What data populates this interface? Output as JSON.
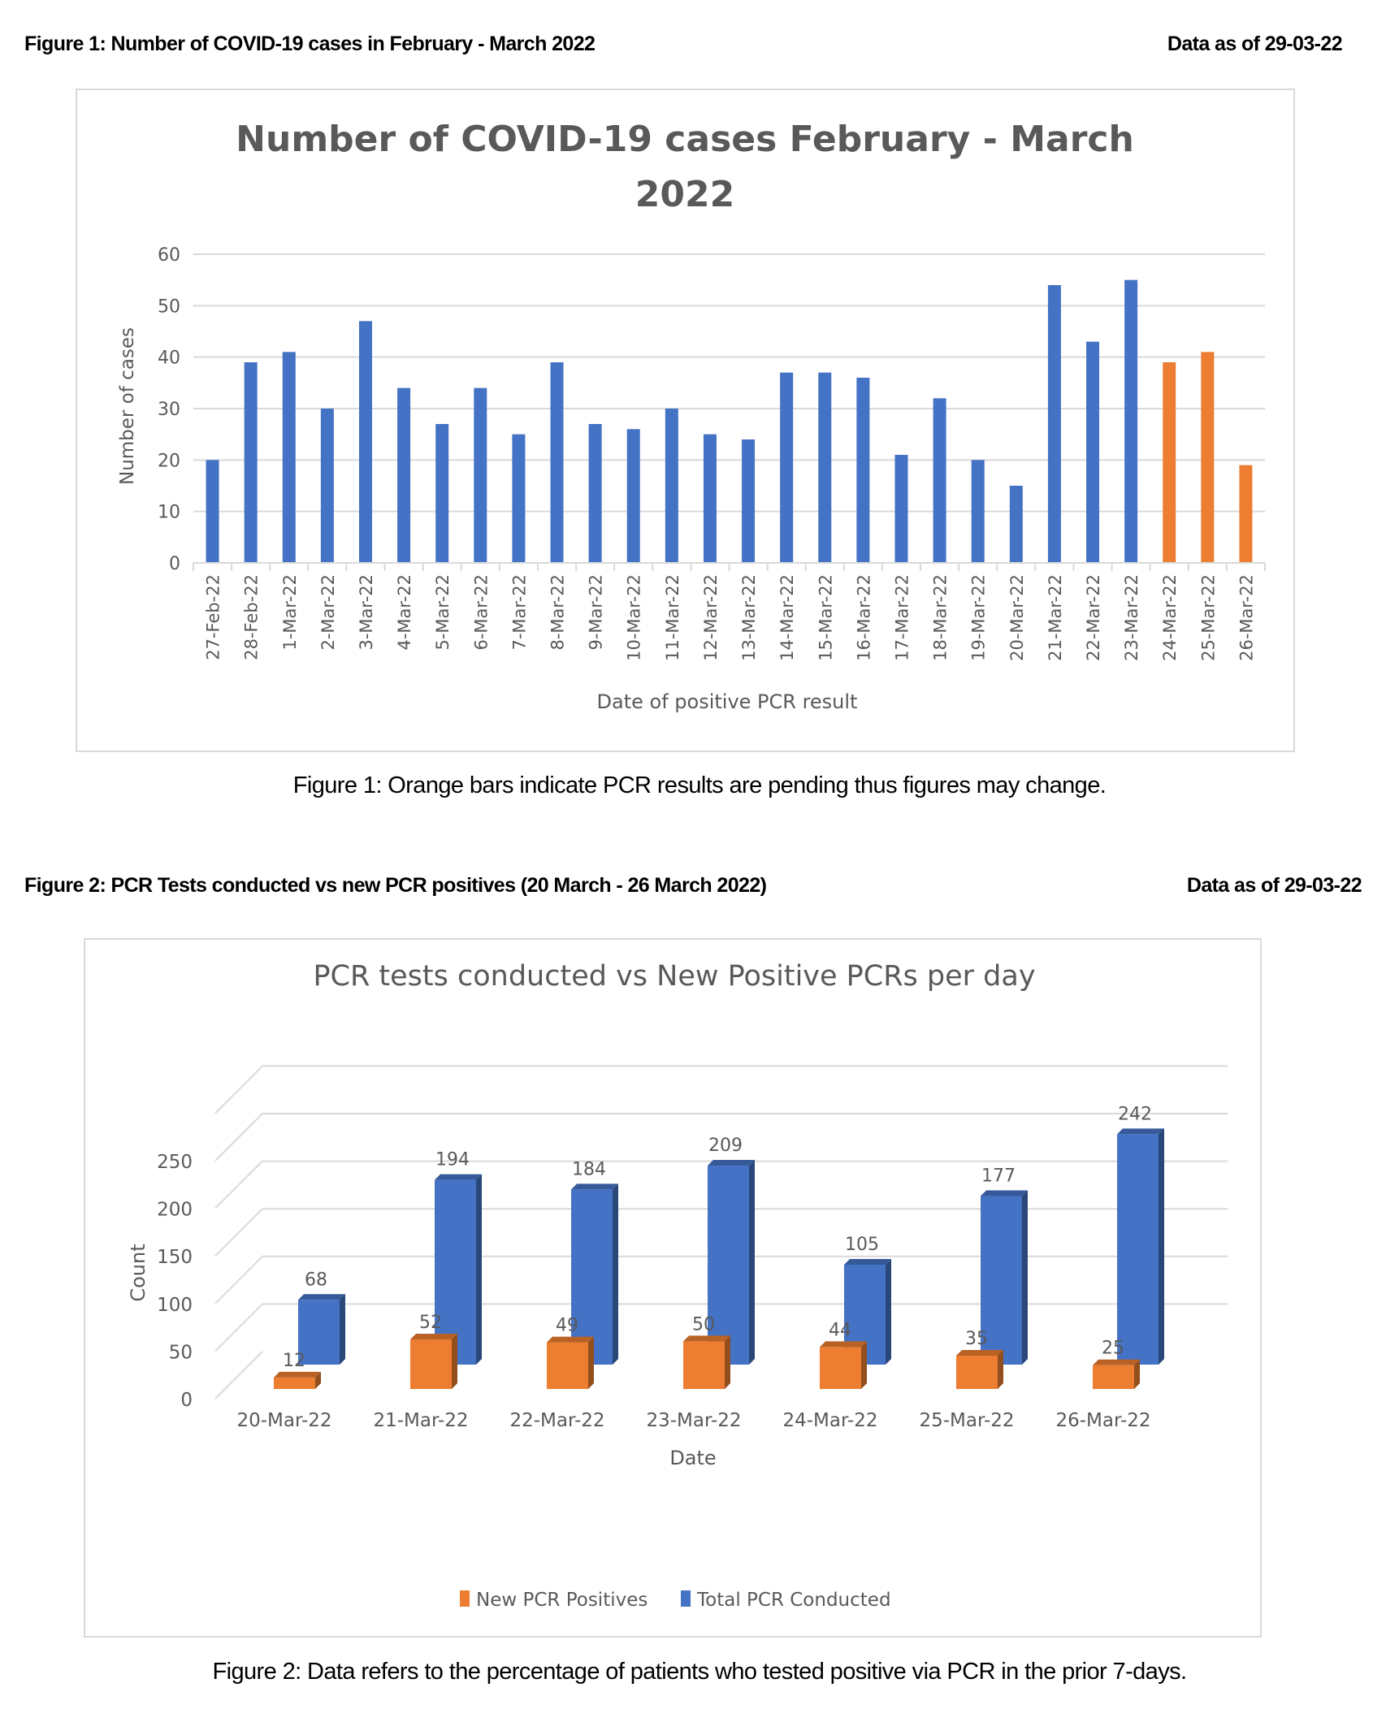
{
  "figure1": {
    "header_title": "Figure 1:  Number of COVID-19 cases in February - March 2022",
    "header_date": "Data as of 29-03-22",
    "caption": "Figure 1: Orange bars indicate PCR results are pending thus figures may change."
  },
  "figure2": {
    "header_title": "Figure 2: PCR Tests conducted vs new PCR positives (20 March - 26 March 2022)",
    "header_date": "Data as of 29-03-22",
    "caption": "Figure 2: Data refers to the percentage of patients who tested positive via PCR in the prior 7-days."
  },
  "colors": {
    "blue": "#4472c4",
    "orange": "#ed7d31",
    "grid": "#d9d9d9",
    "text": "#595959"
  },
  "chart_data": [
    {
      "type": "bar",
      "title_lines": [
        "Number of COVID-19 cases February - March",
        "2022"
      ],
      "xlabel": "Date of positive PCR result",
      "ylabel": "Number of cases",
      "ylim": [
        0,
        60
      ],
      "yticks": [
        "0",
        "10",
        "20",
        "30",
        "40",
        "50",
        "60"
      ],
      "grid": true,
      "categories": [
        "27-Feb-22",
        "28-Feb-22",
        "1-Mar-22",
        "2-Mar-22",
        "3-Mar-22",
        "4-Mar-22",
        "5-Mar-22",
        "6-Mar-22",
        "7-Mar-22",
        "8-Mar-22",
        "9-Mar-22",
        "10-Mar-22",
        "11-Mar-22",
        "12-Mar-22",
        "13-Mar-22",
        "14-Mar-22",
        "15-Mar-22",
        "16-Mar-22",
        "17-Mar-22",
        "18-Mar-22",
        "19-Mar-22",
        "20-Mar-22",
        "21-Mar-22",
        "22-Mar-22",
        "23-Mar-22",
        "24-Mar-22",
        "25-Mar-22",
        "26-Mar-22"
      ],
      "values": [
        20,
        39,
        41,
        30,
        47,
        34,
        27,
        34,
        25,
        39,
        27,
        26,
        30,
        25,
        24,
        37,
        37,
        36,
        21,
        32,
        20,
        15,
        54,
        43,
        55,
        39,
        41,
        19
      ],
      "pending": [
        false,
        false,
        false,
        false,
        false,
        false,
        false,
        false,
        false,
        false,
        false,
        false,
        false,
        false,
        false,
        false,
        false,
        false,
        false,
        false,
        false,
        false,
        false,
        false,
        false,
        true,
        true,
        true
      ]
    },
    {
      "type": "bar",
      "style": "3d-clustered",
      "title": "PCR tests conducted vs New Positive PCRs per day",
      "xlabel": "Date",
      "ylabel": "Count",
      "ylim": [
        0,
        300
      ],
      "yticks": [
        "0",
        "50",
        "100",
        "150",
        "200",
        "250"
      ],
      "grid": true,
      "legend_position": "bottom",
      "categories": [
        "20-Mar-22",
        "21-Mar-22",
        "22-Mar-22",
        "23-Mar-22",
        "24-Mar-22",
        "25-Mar-22",
        "26-Mar-22"
      ],
      "series": [
        {
          "name": "New PCR Positives",
          "values": [
            12,
            52,
            49,
            50,
            44,
            35,
            25
          ],
          "labels": [
            "12",
            "52",
            "49",
            "50",
            "44",
            "35",
            "25"
          ]
        },
        {
          "name": "Total PCR Conducted",
          "values": [
            68,
            194,
            184,
            209,
            105,
            177,
            242
          ],
          "labels": [
            "68",
            "194",
            "184",
            "209",
            "105",
            "177",
            "242"
          ]
        }
      ]
    }
  ]
}
